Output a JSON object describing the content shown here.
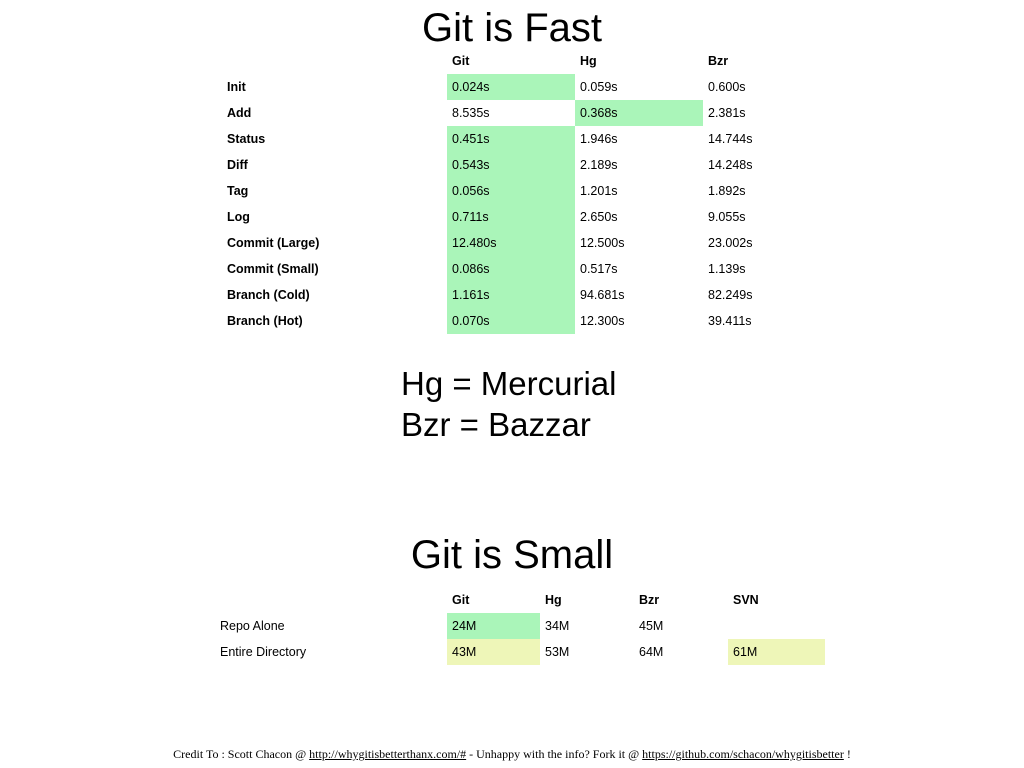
{
  "fast": {
    "title": "Git is Fast",
    "headers": [
      "Git",
      "Hg",
      "Bzr"
    ],
    "rows": [
      {
        "label": "Init",
        "values": [
          "0.024s",
          "0.059s",
          "0.600s"
        ],
        "best": 0
      },
      {
        "label": "Add",
        "values": [
          "8.535s",
          "0.368s",
          "2.381s"
        ],
        "best": 1
      },
      {
        "label": "Status",
        "values": [
          "0.451s",
          "1.946s",
          "14.744s"
        ],
        "best": 0
      },
      {
        "label": "Diff",
        "values": [
          "0.543s",
          "2.189s",
          "14.248s"
        ],
        "best": 0
      },
      {
        "label": "Tag",
        "values": [
          "0.056s",
          "1.201s",
          "1.892s"
        ],
        "best": 0
      },
      {
        "label": "Log",
        "values": [
          "0.711s",
          "2.650s",
          "9.055s"
        ],
        "best": 0
      },
      {
        "label": "Commit (Large)",
        "values": [
          "12.480s",
          "12.500s",
          "23.002s"
        ],
        "best": 0
      },
      {
        "label": "Commit (Small)",
        "values": [
          "0.086s",
          "0.517s",
          "1.139s"
        ],
        "best": 0
      },
      {
        "label": "Branch (Cold)",
        "values": [
          "1.161s",
          "94.681s",
          "82.249s"
        ],
        "best": 0
      },
      {
        "label": "Branch (Hot)",
        "values": [
          "0.070s",
          "12.300s",
          "39.411s"
        ],
        "best": 0
      }
    ],
    "highlight_color": "#aaf5b9"
  },
  "legend": {
    "line1": "Hg = Mercurial",
    "line2": "Bzr = Bazzar"
  },
  "small": {
    "title": "Git is Small",
    "headers": [
      "Git",
      "Hg",
      "Bzr",
      "SVN"
    ],
    "rows": [
      {
        "label": "Repo Alone",
        "values": [
          "24M",
          "34M",
          "45M",
          ""
        ],
        "highlight": [
          "green",
          "",
          "",
          ""
        ]
      },
      {
        "label": "Entire Directory",
        "values": [
          "43M",
          "53M",
          "64M",
          "61M"
        ],
        "highlight": [
          "yellow",
          "",
          "",
          "yellow"
        ]
      }
    ],
    "green_color": "#aaf5b9",
    "yellow_color": "#eef6b8"
  },
  "credit": {
    "prefix": "Credit To : Scott Chacon @ ",
    "link1": "http://whygitisbetterthanx.com/#",
    "middle": " - Unhappy with the info?  Fork it @ ",
    "link2": "https://github.com/schacon/whygitisbetter",
    "suffix": " !"
  }
}
